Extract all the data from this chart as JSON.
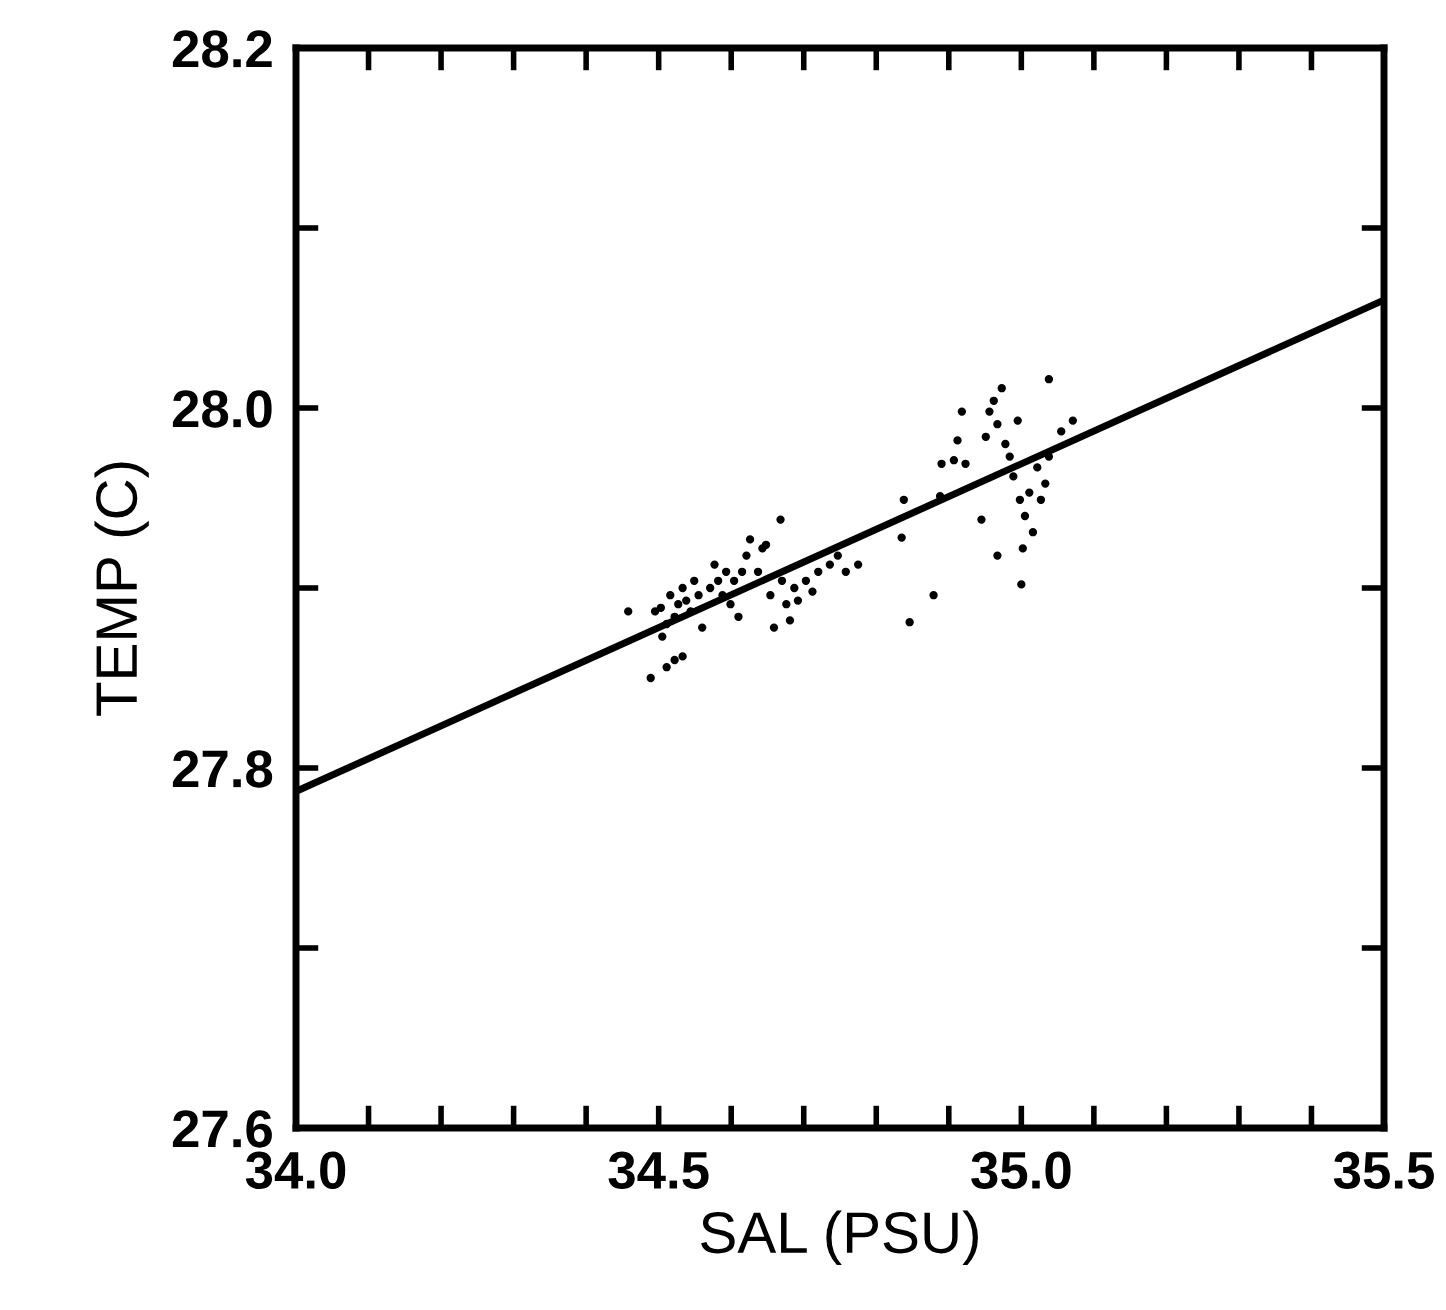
{
  "chart_data": {
    "type": "scatter",
    "xlabel": "SAL (PSU)",
    "ylabel": "TEMP (C)",
    "xlim": [
      34.0,
      35.5
    ],
    "ylim": [
      27.6,
      28.2
    ],
    "xticks": [
      {
        "value": 34.0,
        "label": "34.0"
      },
      {
        "value": 34.1,
        "label": null
      },
      {
        "value": 34.2,
        "label": null
      },
      {
        "value": 34.3,
        "label": null
      },
      {
        "value": 34.4,
        "label": null
      },
      {
        "value": 34.5,
        "label": "34.5"
      },
      {
        "value": 34.6,
        "label": null
      },
      {
        "value": 34.7,
        "label": null
      },
      {
        "value": 34.8,
        "label": null
      },
      {
        "value": 34.9,
        "label": null
      },
      {
        "value": 35.0,
        "label": "35.0"
      },
      {
        "value": 35.1,
        "label": null
      },
      {
        "value": 35.2,
        "label": null
      },
      {
        "value": 35.3,
        "label": null
      },
      {
        "value": 35.4,
        "label": null
      },
      {
        "value": 35.5,
        "label": "35.5"
      }
    ],
    "yticks": [
      27.6,
      {
        "value": 27.7,
        "label": null
      },
      27.8,
      {
        "value": 27.9,
        "label": null
      },
      {
        "value": 28.0,
        "label": "28.0"
      },
      {
        "value": 28.1,
        "label": null
      },
      28.2
    ],
    "grid": false,
    "legend": false,
    "series": [
      {
        "color": "#000000",
        "marker": "circle",
        "x": [
          34.458,
          34.489,
          34.495,
          34.503,
          34.511,
          34.516,
          34.522,
          34.527,
          34.533,
          34.538,
          34.544,
          34.549,
          34.555,
          34.56,
          34.571,
          34.577,
          34.582,
          34.588,
          34.593,
          34.599,
          34.604,
          34.61,
          34.615,
          34.621,
          34.626,
          34.637,
          34.643,
          34.648,
          34.654,
          34.659,
          34.668,
          34.67,
          34.676,
          34.681,
          34.687,
          34.692,
          34.703,
          34.712,
          34.72,
          34.736,
          34.747,
          34.758,
          34.775,
          34.505,
          34.522,
          34.533,
          34.511,
          34.835,
          34.838,
          34.846,
          34.879,
          34.888,
          34.89,
          34.907,
          34.912,
          34.918,
          34.923,
          34.945,
          34.951,
          34.956,
          34.962,
          34.967,
          34.973,
          34.978,
          34.984,
          34.989,
          34.995,
          34.998,
          35.0,
          35.002,
          35.005,
          34.967,
          35.011,
          35.016,
          35.022,
          35.027,
          35.033,
          35.038,
          35.038,
          35.055,
          35.071
        ],
        "values": [
          27.887,
          27.85,
          27.887,
          27.889,
          27.88,
          27.896,
          27.884,
          27.891,
          27.9,
          27.893,
          27.887,
          27.904,
          27.896,
          27.878,
          27.9,
          27.913,
          27.904,
          27.896,
          27.909,
          27.891,
          27.904,
          27.884,
          27.909,
          27.918,
          27.927,
          27.909,
          27.922,
          27.924,
          27.896,
          27.878,
          27.938,
          27.904,
          27.891,
          27.882,
          27.9,
          27.893,
          27.904,
          27.898,
          27.909,
          27.913,
          27.918,
          27.909,
          27.913,
          27.873,
          27.86,
          27.862,
          27.856,
          27.928,
          27.949,
          27.881,
          27.896,
          27.951,
          27.969,
          27.971,
          27.982,
          27.998,
          27.969,
          27.938,
          27.984,
          27.998,
          28.004,
          27.991,
          28.011,
          27.98,
          27.973,
          27.962,
          27.993,
          27.949,
          27.902,
          27.922,
          27.94,
          27.918,
          27.953,
          27.931,
          27.967,
          27.949,
          27.958,
          28.016,
          27.973,
          27.987,
          27.993
        ]
      },
      {
        "type": "line",
        "color": "#000000",
        "marker": "none",
        "line_style": "solid",
        "x": [
          34.0,
          35.5
        ],
        "values": [
          27.787,
          28.06
        ]
      }
    ]
  }
}
